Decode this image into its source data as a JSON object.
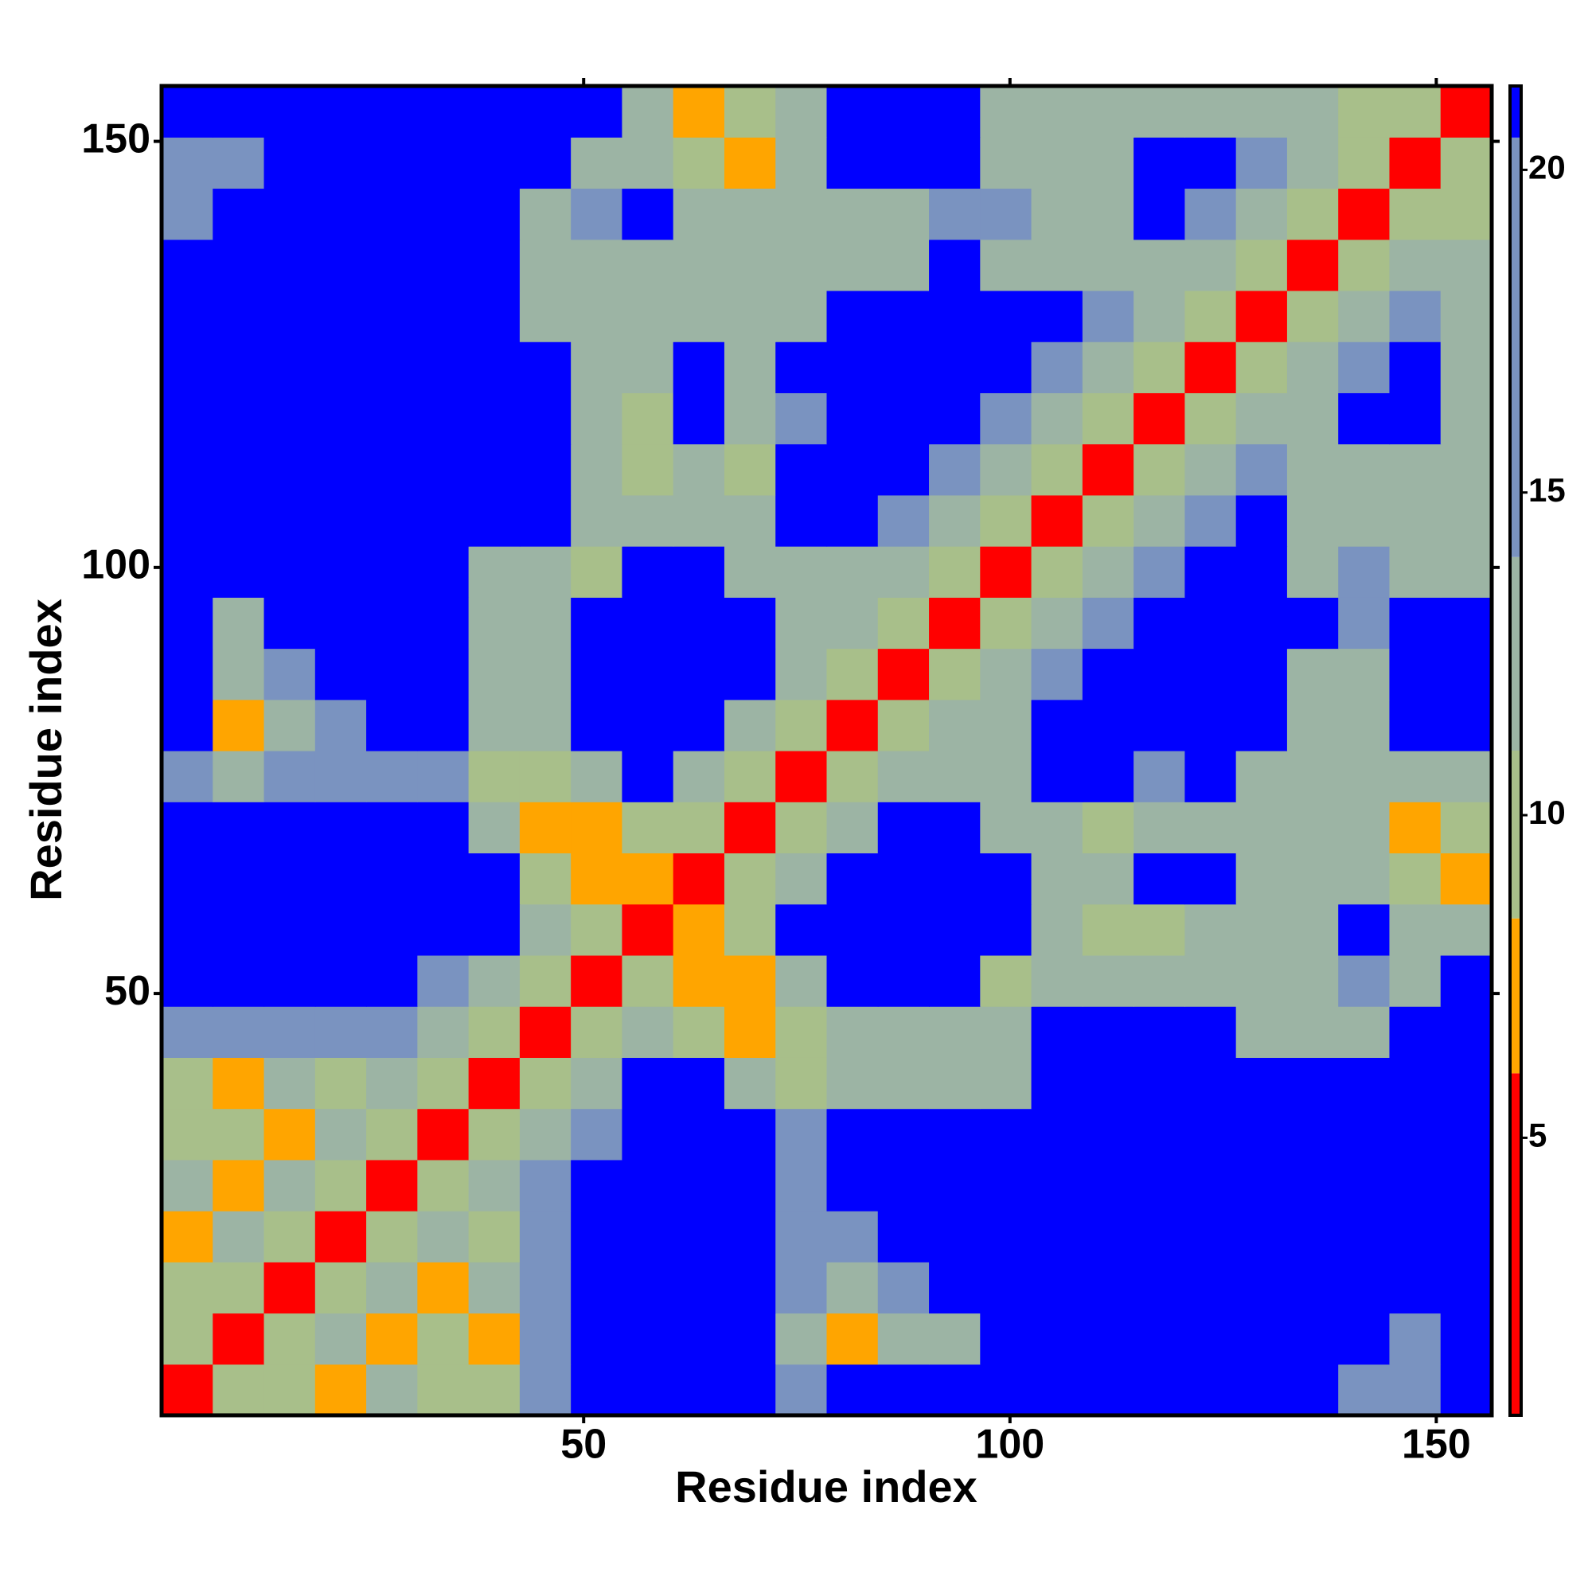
{
  "chart_data": {
    "type": "heatmap",
    "x_label": "Residue index",
    "y_label": "Residue index",
    "x": [
      3.5,
      9.5,
      15.5,
      21.5,
      27.5,
      33.5,
      39.5,
      45.5,
      51.5,
      57.5,
      63.5,
      69.5,
      75.5,
      81.5,
      87.5,
      93.5,
      99.5,
      105.5,
      111.5,
      117.5,
      123.5,
      129.5,
      135.5,
      141.5,
      147.5,
      153.5
    ],
    "y": [
      3.5,
      9.5,
      15.5,
      21.5,
      27.5,
      33.5,
      39.5,
      45.5,
      51.5,
      57.5,
      63.5,
      69.5,
      75.5,
      81.5,
      87.5,
      93.5,
      99.5,
      105.5,
      111.5,
      117.5,
      123.5,
      129.5,
      135.5,
      141.5,
      147.5,
      153.5
    ],
    "z": [
      [
        4,
        9,
        10,
        8,
        11,
        10,
        9,
        14,
        22,
        22,
        22,
        22,
        16,
        22,
        22,
        22,
        22,
        22,
        22,
        22,
        22,
        22,
        22,
        16,
        17,
        22
      ],
      [
        9,
        4,
        9,
        11,
        7,
        10,
        8,
        15,
        22,
        22,
        22,
        22,
        12,
        8,
        11,
        13,
        22,
        22,
        22,
        22,
        22,
        22,
        22,
        22,
        15,
        22
      ],
      [
        10,
        9,
        4,
        9,
        11,
        8,
        11,
        18,
        22,
        22,
        22,
        22,
        14,
        13,
        14,
        22,
        22,
        22,
        22,
        22,
        22,
        22,
        22,
        22,
        22,
        22
      ],
      [
        8,
        11,
        9,
        4,
        9,
        11,
        10,
        18,
        22,
        22,
        22,
        22,
        14,
        15,
        22,
        22,
        22,
        22,
        22,
        22,
        22,
        22,
        22,
        22,
        22,
        22
      ],
      [
        11,
        7,
        11,
        9,
        4,
        9,
        11,
        16,
        22,
        22,
        22,
        22,
        15,
        22,
        22,
        22,
        22,
        22,
        22,
        22,
        22,
        22,
        22,
        22,
        22,
        22
      ],
      [
        10,
        10,
        8,
        11,
        9,
        4,
        9,
        11,
        16,
        22,
        22,
        22,
        16,
        22,
        22,
        22,
        22,
        22,
        22,
        22,
        22,
        22,
        22,
        22,
        22,
        22
      ],
      [
        9,
        8,
        11,
        10,
        11,
        9,
        4,
        9,
        12,
        22,
        22,
        13,
        10,
        11,
        11,
        12,
        13,
        22,
        22,
        22,
        22,
        22,
        22,
        22,
        22,
        22
      ],
      [
        14,
        15,
        18,
        18,
        16,
        11,
        9,
        4,
        9,
        12,
        10,
        8,
        9,
        12,
        13,
        11,
        12,
        22,
        22,
        22,
        22,
        12,
        12,
        11,
        22,
        22
      ],
      [
        22,
        22,
        22,
        22,
        22,
        16,
        12,
        9,
        4,
        9,
        7,
        7,
        11,
        22,
        22,
        22,
        10,
        11,
        11,
        12,
        13,
        11,
        13,
        14,
        12,
        22
      ],
      [
        22,
        22,
        22,
        22,
        22,
        22,
        22,
        12,
        9,
        4,
        6,
        10,
        22,
        22,
        22,
        22,
        22,
        12,
        10,
        10,
        11,
        12,
        13,
        22,
        12,
        13
      ],
      [
        22,
        22,
        22,
        22,
        22,
        22,
        22,
        10,
        7,
        6,
        4,
        9,
        11,
        22,
        22,
        22,
        22,
        13,
        12,
        22,
        22,
        11,
        12,
        12,
        9,
        8
      ],
      [
        22,
        22,
        22,
        22,
        22,
        22,
        13,
        8,
        7,
        10,
        9,
        4,
        9,
        13,
        22,
        22,
        12,
        11,
        10,
        13,
        12,
        11,
        12,
        11,
        8,
        10
      ],
      [
        16,
        12,
        14,
        14,
        15,
        16,
        10,
        9,
        11,
        22,
        11,
        9,
        4,
        9,
        13,
        12,
        11,
        22,
        22,
        14,
        22,
        12,
        11,
        12,
        12,
        13
      ],
      [
        22,
        8,
        13,
        15,
        22,
        22,
        11,
        12,
        22,
        22,
        22,
        13,
        9,
        4,
        9,
        13,
        13,
        22,
        22,
        22,
        22,
        22,
        11,
        12,
        22,
        22
      ],
      [
        22,
        11,
        14,
        22,
        22,
        22,
        11,
        13,
        22,
        22,
        22,
        22,
        13,
        9,
        4,
        9,
        13,
        14,
        22,
        22,
        22,
        22,
        13,
        12,
        22,
        22
      ],
      [
        22,
        13,
        22,
        22,
        22,
        22,
        12,
        11,
        22,
        22,
        22,
        22,
        12,
        13,
        9,
        4,
        9,
        13,
        16,
        22,
        22,
        22,
        22,
        14,
        22,
        22
      ],
      [
        22,
        22,
        22,
        22,
        22,
        22,
        13,
        12,
        10,
        22,
        22,
        12,
        11,
        13,
        13,
        9,
        4,
        9,
        13,
        16,
        22,
        22,
        12,
        14,
        12,
        13
      ],
      [
        22,
        22,
        22,
        22,
        22,
        22,
        22,
        22,
        11,
        12,
        13,
        11,
        22,
        22,
        14,
        13,
        9,
        4,
        9,
        13,
        16,
        22,
        11,
        12,
        12,
        11
      ],
      [
        22,
        22,
        22,
        22,
        22,
        22,
        22,
        22,
        11,
        10,
        12,
        10,
        22,
        22,
        22,
        16,
        13,
        9,
        4,
        9,
        13,
        16,
        12,
        12,
        13,
        12
      ],
      [
        22,
        22,
        22,
        22,
        22,
        22,
        22,
        22,
        12,
        10,
        22,
        13,
        14,
        22,
        22,
        22,
        16,
        13,
        9,
        4,
        9,
        13,
        12,
        22,
        22,
        12
      ],
      [
        22,
        22,
        22,
        22,
        22,
        22,
        22,
        22,
        13,
        11,
        22,
        12,
        22,
        22,
        22,
        22,
        22,
        16,
        13,
        9,
        4,
        9,
        13,
        16,
        22,
        11
      ],
      [
        22,
        22,
        22,
        22,
        22,
        22,
        22,
        12,
        11,
        12,
        11,
        11,
        12,
        22,
        22,
        22,
        22,
        22,
        16,
        13,
        9,
        4,
        9,
        13,
        16,
        12
      ],
      [
        22,
        22,
        22,
        22,
        22,
        22,
        22,
        12,
        13,
        13,
        12,
        12,
        11,
        11,
        13,
        22,
        12,
        11,
        12,
        12,
        13,
        9,
        4,
        9,
        13,
        11
      ],
      [
        16,
        22,
        22,
        22,
        22,
        22,
        22,
        11,
        14,
        22,
        12,
        11,
        12,
        12,
        12,
        14,
        14,
        12,
        12,
        22,
        16,
        13,
        9,
        4,
        9,
        9
      ],
      [
        17,
        15,
        22,
        22,
        22,
        22,
        22,
        22,
        12,
        12,
        9,
        8,
        12,
        22,
        22,
        22,
        12,
        12,
        13,
        22,
        22,
        16,
        13,
        9,
        4,
        9
      ],
      [
        22,
        22,
        22,
        22,
        22,
        22,
        22,
        22,
        22,
        13,
        8,
        10,
        13,
        22,
        22,
        22,
        13,
        11,
        12,
        12,
        11,
        12,
        11,
        9,
        9,
        4
      ]
    ],
    "xlim": [
      0.5,
      156.5
    ],
    "ylim": [
      0.5,
      156.5
    ],
    "xticks": [
      50,
      100,
      150
    ],
    "yticks": [
      50,
      100,
      150
    ],
    "zlim": [
      0.7,
      21.3
    ],
    "zticks": [
      5,
      10,
      15,
      20
    ],
    "color_breaks": [
      6,
      8.4,
      11,
      14,
      20.5
    ],
    "colors": [
      "#ff0000",
      "#ffa500",
      "#a8bf8a",
      "#9cb4a4",
      "#7a93c0",
      "#0000ff"
    ]
  }
}
